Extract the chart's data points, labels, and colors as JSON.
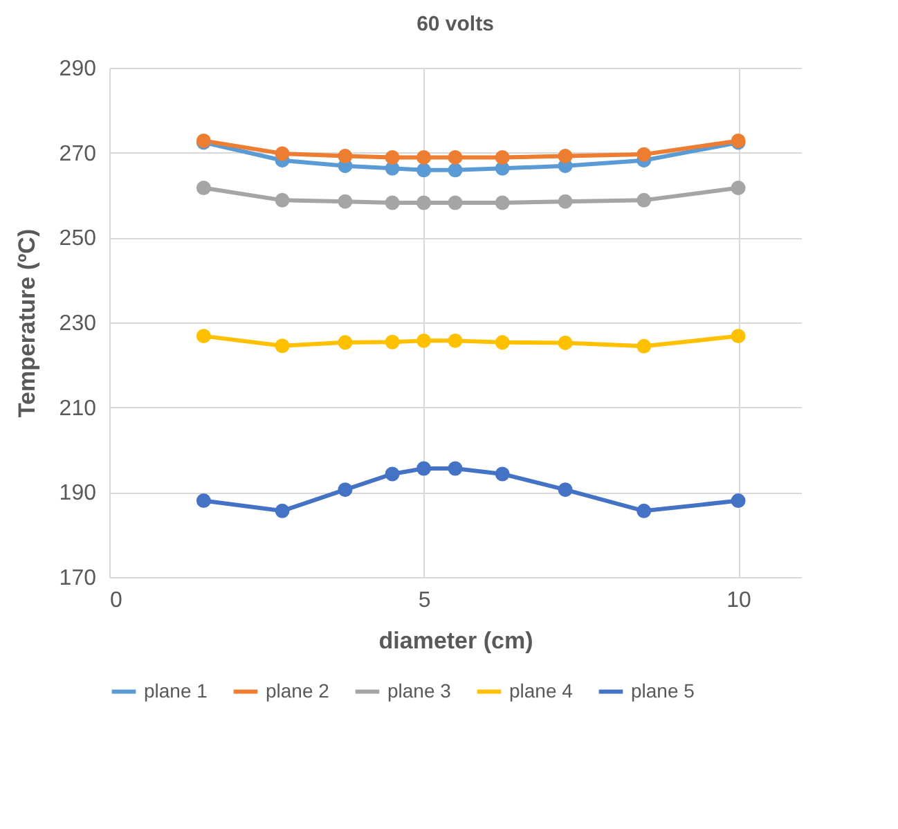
{
  "chart_data": {
    "type": "line",
    "title": "60 volts",
    "xlabel": "diameter (cm)",
    "ylabel": "Temperature (ºC)",
    "x": [
      1.5,
      2.75,
      3.75,
      4.5,
      5,
      5.5,
      6.25,
      7.25,
      8.5,
      10
    ],
    "series": [
      {
        "name": "plane 1",
        "color": "#5b9bd5",
        "values": [
          272.4,
          268.2,
          266.9,
          266.3,
          265.9,
          265.9,
          266.3,
          266.9,
          268.2,
          272.4
        ]
      },
      {
        "name": "plane 2",
        "color": "#ed7d31",
        "values": [
          272.8,
          269.8,
          269.2,
          268.9,
          268.9,
          268.9,
          268.9,
          269.2,
          269.6,
          272.8
        ]
      },
      {
        "name": "plane 3",
        "color": "#a5a5a5",
        "values": [
          261.7,
          258.8,
          258.5,
          258.2,
          258.2,
          258.2,
          258.2,
          258.5,
          258.8,
          261.7
        ]
      },
      {
        "name": "plane 4",
        "color": "#ffc000",
        "values": [
          226.8,
          224.5,
          225.3,
          225.4,
          225.7,
          225.7,
          225.3,
          225.2,
          224.4,
          226.8
        ]
      },
      {
        "name": "plane 5",
        "color": "#4472c4",
        "values": [
          188,
          185.6,
          190.6,
          194.3,
          195.6,
          195.6,
          194.3,
          190.6,
          185.6,
          188
        ]
      }
    ],
    "xlim": [
      0,
      11
    ],
    "xticks": [
      0,
      5,
      10
    ],
    "ylim": [
      170,
      290
    ],
    "yticks": [
      170,
      190,
      210,
      230,
      250,
      270,
      290
    ],
    "grid": true,
    "legend": "bottom",
    "marker": "circle",
    "line_style": "solid"
  }
}
